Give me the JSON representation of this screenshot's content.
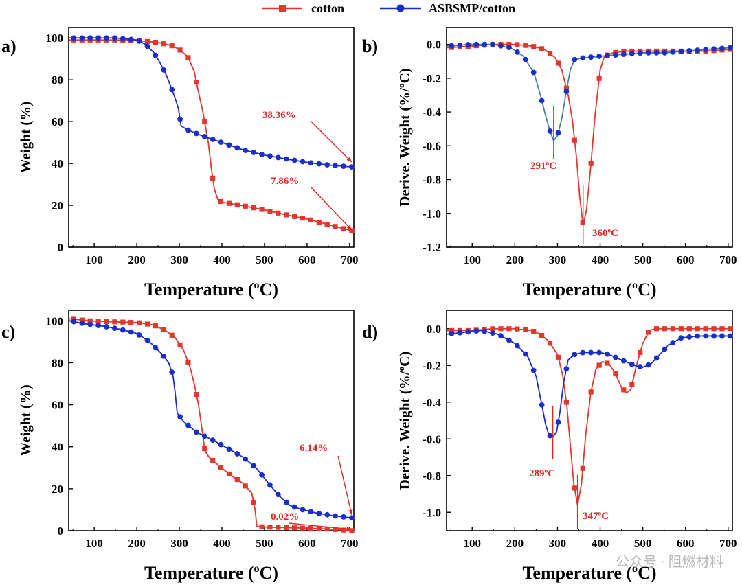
{
  "legend": [
    {
      "label": "cotton",
      "color": "#e0382c",
      "marker": "square"
    },
    {
      "label": "ASBSMP/cotton",
      "color": "#1a2fc9",
      "marker": "circle"
    }
  ],
  "colors": {
    "cotton": "#e0382c",
    "asb": "#1a2fc9",
    "annotation": "#e0281e",
    "asb_line_d": "#4d7f9e"
  },
  "watermark": "公众号 · 阻燃材料",
  "chart_data": [
    {
      "panel": "a)",
      "type": "line",
      "xlabel": "Temperature (oC)",
      "ylabel": "Weight (%)",
      "xlim": [
        40,
        710
      ],
      "ylim": [
        0,
        105
      ],
      "xticks": [
        100,
        200,
        300,
        400,
        500,
        600,
        700
      ],
      "yticks": [
        0,
        20,
        40,
        60,
        80,
        100
      ],
      "series": [
        {
          "name": "cotton",
          "points": [
            [
              40,
              99
            ],
            [
              100,
              99
            ],
            [
              150,
              99
            ],
            [
              200,
              98.8
            ],
            [
              250,
              97.8
            ],
            [
              280,
              96.5
            ],
            [
              300,
              94.5
            ],
            [
              320,
              91
            ],
            [
              335,
              84
            ],
            [
              345,
              74
            ],
            [
              355,
              65
            ],
            [
              362,
              57
            ],
            [
              368,
              50
            ],
            [
              375,
              38
            ],
            [
              382,
              28
            ],
            [
              390,
              23
            ],
            [
              400,
              21.5
            ],
            [
              450,
              19.8
            ],
            [
              500,
              17.8
            ],
            [
              550,
              15.5
            ],
            [
              600,
              13.5
            ],
            [
              650,
              10.8
            ],
            [
              705,
              7.86
            ]
          ]
        },
        {
          "name": "ASBSMP/cotton",
          "points": [
            [
              40,
              100
            ],
            [
              100,
              100
            ],
            [
              150,
              100
            ],
            [
              200,
              99
            ],
            [
              220,
              97
            ],
            [
              240,
              93
            ],
            [
              255,
              88
            ],
            [
              270,
              82
            ],
            [
              285,
              74
            ],
            [
              292,
              70
            ],
            [
              298,
              66
            ],
            [
              304,
              58
            ],
            [
              320,
              56
            ],
            [
              350,
              53.5
            ],
            [
              400,
              50
            ],
            [
              450,
              46.5
            ],
            [
              500,
              44
            ],
            [
              550,
              42.2
            ],
            [
              600,
              40.5
            ],
            [
              650,
              39.3
            ],
            [
              705,
              38.36
            ]
          ]
        }
      ],
      "annotations": [
        {
          "text": "38.36%",
          "x": 705,
          "y": 38.36
        },
        {
          "text": "7.86%",
          "x": 705,
          "y": 7.86
        }
      ]
    },
    {
      "panel": "b)",
      "type": "line",
      "xlabel": "Temperature (oC)",
      "ylabel": "Derive. Weight (%/oC)",
      "xlim": [
        40,
        710
      ],
      "ylim": [
        -1.2,
        0.1
      ],
      "xticks": [
        100,
        200,
        300,
        400,
        500,
        600,
        700
      ],
      "yticks": [
        0.0,
        -0.2,
        -0.4,
        -0.6,
        -0.8,
        -1.0,
        -1.2
      ],
      "ytickLabels": [
        "0.0",
        "-0.2",
        "-0.4",
        "-0.6",
        "-0.8",
        "-1.0",
        "-1.2"
      ],
      "series": [
        {
          "name": "cotton",
          "points": [
            [
              40,
              -0.02
            ],
            [
              100,
              -0.01
            ],
            [
              150,
              0
            ],
            [
              200,
              0
            ],
            [
              240,
              -0.01
            ],
            [
              270,
              -0.03
            ],
            [
              295,
              -0.08
            ],
            [
              310,
              -0.15
            ],
            [
              325,
              -0.3
            ],
            [
              335,
              -0.45
            ],
            [
              345,
              -0.68
            ],
            [
              352,
              -0.9
            ],
            [
              360,
              -1.07
            ],
            [
              368,
              -0.98
            ],
            [
              378,
              -0.72
            ],
            [
              388,
              -0.42
            ],
            [
              400,
              -0.15
            ],
            [
              410,
              -0.07
            ],
            [
              430,
              -0.05
            ],
            [
              460,
              -0.04
            ],
            [
              500,
              -0.04
            ],
            [
              550,
              -0.04
            ],
            [
              600,
              -0.04
            ],
            [
              650,
              -0.04
            ],
            [
              705,
              -0.03
            ]
          ]
        },
        {
          "name": "ASBSMP/cotton",
          "points": [
            [
              40,
              -0.01
            ],
            [
              100,
              0
            ],
            [
              150,
              0
            ],
            [
              190,
              -0.02
            ],
            [
              220,
              -0.07
            ],
            [
              245,
              -0.17
            ],
            [
              260,
              -0.3
            ],
            [
              272,
              -0.42
            ],
            [
              282,
              -0.51
            ],
            [
              291,
              -0.57
            ],
            [
              300,
              -0.54
            ],
            [
              310,
              -0.44
            ],
            [
              320,
              -0.29
            ],
            [
              330,
              -0.15
            ],
            [
              340,
              -0.09
            ],
            [
              360,
              -0.08
            ],
            [
              400,
              -0.07
            ],
            [
              450,
              -0.06
            ],
            [
              500,
              -0.05
            ],
            [
              550,
              -0.05
            ],
            [
              600,
              -0.04
            ],
            [
              650,
              -0.03
            ],
            [
              705,
              -0.02
            ]
          ]
        }
      ],
      "annotations": [
        {
          "text": "291oC",
          "x": 291,
          "y": -0.57
        },
        {
          "text": "360oC",
          "x": 360,
          "y": -1.07
        }
      ]
    },
    {
      "panel": "c)",
      "type": "line",
      "xlabel": "Temperature (oC)",
      "ylabel": "Weight (%)",
      "xlim": [
        40,
        710
      ],
      "ylim": [
        0,
        105
      ],
      "xticks": [
        100,
        200,
        300,
        400,
        500,
        600,
        700
      ],
      "yticks": [
        0,
        20,
        40,
        60,
        80,
        100
      ],
      "series": [
        {
          "name": "cotton",
          "points": [
            [
              40,
              101
            ],
            [
              100,
              99.8
            ],
            [
              150,
              99.5
            ],
            [
              200,
              99.2
            ],
            [
              240,
              98
            ],
            [
              270,
              95
            ],
            [
              290,
              92
            ],
            [
              310,
              86
            ],
            [
              325,
              78
            ],
            [
              335,
              70
            ],
            [
              345,
              60
            ],
            [
              352,
              50
            ],
            [
              360,
              38
            ],
            [
              370,
              35
            ],
            [
              390,
              31.5
            ],
            [
              420,
              26.5
            ],
            [
              450,
              22.5
            ],
            [
              470,
              18
            ],
            [
              478,
              10
            ],
            [
              482,
              2
            ],
            [
              500,
              1.8
            ],
            [
              550,
              1.5
            ],
            [
              600,
              1.2
            ],
            [
              650,
              0.8
            ],
            [
              705,
              0.02
            ]
          ]
        },
        {
          "name": "ASBSMP/cotton",
          "points": [
            [
              40,
              100
            ],
            [
              80,
              98.5
            ],
            [
              120,
              97.5
            ],
            [
              160,
              96
            ],
            [
              200,
              94
            ],
            [
              230,
              90
            ],
            [
              260,
              84
            ],
            [
              275,
              80
            ],
            [
              285,
              74
            ],
            [
              290,
              66
            ],
            [
              295,
              56
            ],
            [
              310,
              52
            ],
            [
              340,
              47
            ],
            [
              380,
              43
            ],
            [
              420,
              38.5
            ],
            [
              450,
              35
            ],
            [
              480,
              30
            ],
            [
              500,
              25
            ],
            [
              520,
              20
            ],
            [
              540,
              15.5
            ],
            [
              560,
              12
            ],
            [
              590,
              10
            ],
            [
              620,
              8.5
            ],
            [
              660,
              7.2
            ],
            [
              705,
              6.14
            ]
          ]
        }
      ],
      "annotations": [
        {
          "text": "6.14%",
          "x": 705,
          "y": 6.14
        },
        {
          "text": "0.02%",
          "x": 705,
          "y": 0.02
        }
      ]
    },
    {
      "panel": "d)",
      "type": "line",
      "xlabel": "Temperature (oC)",
      "ylabel": "Derive. Weight (%/oC)",
      "xlim": [
        40,
        710
      ],
      "ylim": [
        -1.1,
        0.1
      ],
      "xticks": [
        100,
        200,
        300,
        400,
        500,
        600,
        700
      ],
      "yticks": [
        0.0,
        -0.2,
        -0.4,
        -0.6,
        -0.8,
        -1.0
      ],
      "ytickLabels": [
        "0.0",
        "-0.2",
        "-0.4",
        "-0.6",
        "-0.8",
        "-1.0"
      ],
      "series": [
        {
          "name": "cotton",
          "points": [
            [
              40,
              -0.01
            ],
            [
              100,
              -0.01
            ],
            [
              150,
              0
            ],
            [
              200,
              0
            ],
            [
              240,
              -0.01
            ],
            [
              260,
              -0.03
            ],
            [
              280,
              -0.07
            ],
            [
              300,
              -0.14
            ],
            [
              312,
              -0.25
            ],
            [
              322,
              -0.42
            ],
            [
              330,
              -0.63
            ],
            [
              338,
              -0.84
            ],
            [
              347,
              -0.96
            ],
            [
              356,
              -0.85
            ],
            [
              366,
              -0.58
            ],
            [
              378,
              -0.35
            ],
            [
              390,
              -0.22
            ],
            [
              405,
              -0.18
            ],
            [
              420,
              -0.19
            ],
            [
              435,
              -0.24
            ],
            [
              450,
              -0.32
            ],
            [
              462,
              -0.35
            ],
            [
              472,
              -0.33
            ],
            [
              485,
              -0.2
            ],
            [
              500,
              -0.08
            ],
            [
              515,
              -0.01
            ],
            [
              530,
              0
            ],
            [
              570,
              0
            ],
            [
              620,
              0
            ],
            [
              670,
              0
            ],
            [
              705,
              0
            ]
          ]
        },
        {
          "name": "ASBSMP/cotton",
          "points": [
            [
              40,
              -0.03
            ],
            [
              80,
              -0.02
            ],
            [
              120,
              -0.01
            ],
            [
              160,
              -0.03
            ],
            [
              200,
              -0.08
            ],
            [
              230,
              -0.15
            ],
            [
              250,
              -0.26
            ],
            [
              262,
              -0.4
            ],
            [
              272,
              -0.52
            ],
            [
              280,
              -0.58
            ],
            [
              289,
              -0.59
            ],
            [
              298,
              -0.56
            ],
            [
              306,
              -0.45
            ],
            [
              314,
              -0.3
            ],
            [
              325,
              -0.17
            ],
            [
              340,
              -0.14
            ],
            [
              360,
              -0.13
            ],
            [
              380,
              -0.13
            ],
            [
              400,
              -0.13
            ],
            [
              420,
              -0.14
            ],
            [
              440,
              -0.16
            ],
            [
              460,
              -0.18
            ],
            [
              480,
              -0.2
            ],
            [
              500,
              -0.21
            ],
            [
              520,
              -0.19
            ],
            [
              540,
              -0.14
            ],
            [
              560,
              -0.09
            ],
            [
              590,
              -0.05
            ],
            [
              630,
              -0.04
            ],
            [
              670,
              -0.04
            ],
            [
              705,
              -0.04
            ]
          ]
        }
      ],
      "annotations": [
        {
          "text": "289oC",
          "x": 289,
          "y": -0.59
        },
        {
          "text": "347oC",
          "x": 347,
          "y": -0.96
        }
      ]
    }
  ]
}
